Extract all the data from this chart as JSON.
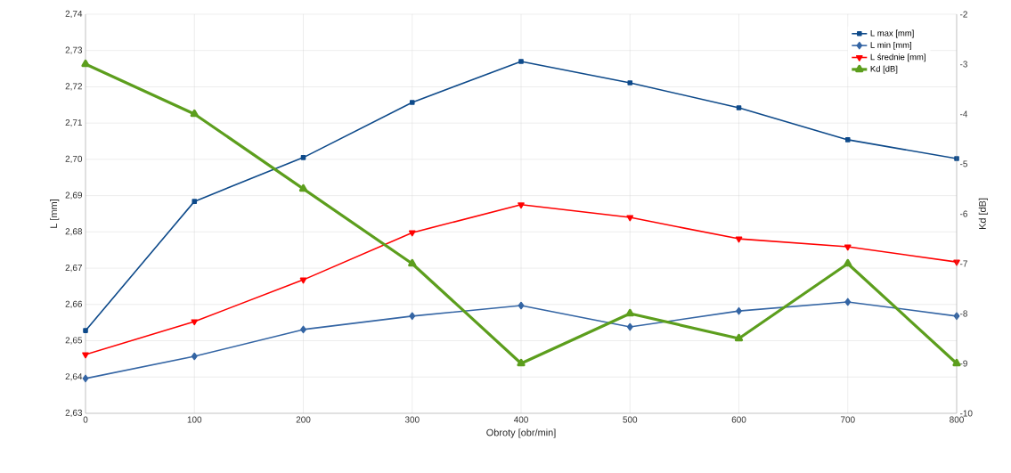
{
  "chart_data": {
    "type": "line",
    "xlabel": "Obroty [obr/min]",
    "ylabel": "L [mm]",
    "y2label": "Kd [dB]",
    "x": [
      0,
      100,
      200,
      300,
      400,
      500,
      600,
      700,
      800
    ],
    "xlim": [
      0,
      800
    ],
    "xticks": [
      0,
      100,
      200,
      300,
      400,
      500,
      600,
      700,
      800
    ],
    "ylim": [
      2.63,
      2.74
    ],
    "yticks": [
      {
        "value": 2.63,
        "label": "2,63"
      },
      {
        "value": 2.64,
        "label": "2,64"
      },
      {
        "value": 2.65,
        "label": "2,65"
      },
      {
        "value": 2.66,
        "label": "2,66"
      },
      {
        "value": 2.67,
        "label": "2,67"
      },
      {
        "value": 2.68,
        "label": "2,68"
      },
      {
        "value": 2.69,
        "label": "2,69"
      },
      {
        "value": 2.7,
        "label": "2,70"
      },
      {
        "value": 2.71,
        "label": "2,71"
      },
      {
        "value": 2.72,
        "label": "2,72"
      },
      {
        "value": 2.73,
        "label": "2,73"
      },
      {
        "value": 2.74,
        "label": "2,74"
      }
    ],
    "y2lim": [
      -10,
      -2
    ],
    "y2ticks": [
      -10,
      -9,
      -8,
      -7,
      -6,
      -5,
      -4,
      -3,
      -2
    ],
    "grid": true,
    "legend": "top right",
    "series": [
      {
        "name": "L max [mm]",
        "color": "#0e4a8a",
        "marker": "square",
        "values": [
          2.6528,
          2.6884,
          2.7005,
          2.7157,
          2.727,
          2.7211,
          2.7142,
          2.7054,
          2.7002
        ]
      },
      {
        "name": "L min [mm]",
        "color": "#3465a4",
        "marker": "diamond",
        "values": [
          2.6396,
          2.6457,
          2.6531,
          2.6568,
          2.6597,
          2.6538,
          2.6582,
          2.6607,
          2.6568
        ]
      },
      {
        "name": "L średnie [mm]",
        "color": "#ff0000",
        "marker": "triangle_down",
        "values": [
          2.6462,
          2.6553,
          2.6668,
          2.6798,
          2.6875,
          2.684,
          2.6781,
          2.6759,
          2.6717
        ]
      },
      {
        "name": "Kd [dB]",
        "color": "#5c9e1d",
        "marker": "triangle",
        "axis": "y2",
        "values": [
          -3,
          -4,
          -5.5,
          -7,
          -9,
          -8,
          -8.5,
          -7,
          -9
        ]
      }
    ]
  }
}
